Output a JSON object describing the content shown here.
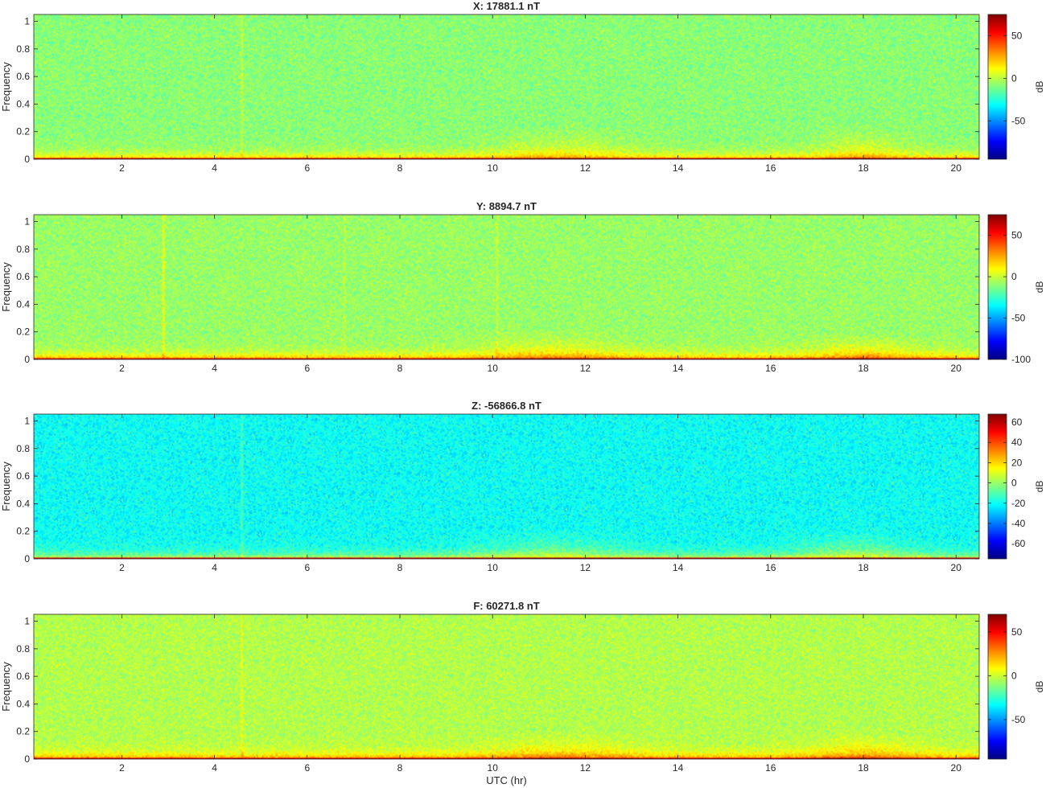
{
  "figure": {
    "xlabel": "UTC (hr)",
    "colorbar_label": "dB",
    "colormap": "jet"
  },
  "chart_data": [
    {
      "type": "heatmap",
      "title": "X: 17881.1 nT",
      "ylabel": "Frequency",
      "xlabel": "",
      "xlim": [
        0.1,
        20.5
      ],
      "ylim": [
        0,
        1.05
      ],
      "xticks": [
        2,
        4,
        6,
        8,
        10,
        12,
        14,
        16,
        18,
        20
      ],
      "yticks": [
        0,
        0.2,
        0.4,
        0.6,
        0.8,
        1
      ],
      "clim": [
        -95,
        75
      ],
      "cticks": [
        -50,
        0,
        50
      ],
      "colorbar_label": "dB",
      "background_db": -8,
      "band_db": 60,
      "low_freq_db": 25,
      "noise_db": 14,
      "enhancements": [
        {
          "x": 11.5,
          "width_hr": 1.5,
          "max_freq": 0.25,
          "db": 12
        },
        {
          "x": 18.0,
          "width_hr": 1.0,
          "max_freq": 0.25,
          "db": 14
        }
      ],
      "vertical_lines": [
        {
          "x": 4.6,
          "db": 10
        }
      ]
    },
    {
      "type": "heatmap",
      "title": "Y: 8894.7 nT",
      "ylabel": "Frequency",
      "xlabel": "",
      "xlim": [
        0.1,
        20.5
      ],
      "ylim": [
        0,
        1.05
      ],
      "xticks": [
        2,
        4,
        6,
        8,
        10,
        12,
        14,
        16,
        18,
        20
      ],
      "yticks": [
        0,
        0.2,
        0.4,
        0.6,
        0.8,
        1
      ],
      "clim": [
        -100,
        75
      ],
      "cticks": [
        -100,
        -50,
        0,
        50
      ],
      "colorbar_label": "dB",
      "background_db": -8,
      "band_db": 60,
      "low_freq_db": 28,
      "noise_db": 14,
      "enhancements": [
        {
          "x": 11.3,
          "width_hr": 1.6,
          "max_freq": 0.22,
          "db": 14
        },
        {
          "x": 18.0,
          "width_hr": 1.2,
          "max_freq": 0.2,
          "db": 16
        }
      ],
      "vertical_lines": [
        {
          "x": 2.9,
          "db": 16
        },
        {
          "x": 6.8,
          "db": 6
        },
        {
          "x": 10.1,
          "db": 8
        }
      ]
    },
    {
      "type": "heatmap",
      "title": "Z: -56866.8 nT",
      "ylabel": "Frequency",
      "xlabel": "",
      "xlim": [
        0.1,
        20.5
      ],
      "ylim": [
        0,
        1.05
      ],
      "xticks": [
        2,
        4,
        6,
        8,
        10,
        12,
        14,
        16,
        18,
        20
      ],
      "yticks": [
        0,
        0.2,
        0.4,
        0.6,
        0.8,
        1
      ],
      "clim": [
        -75,
        68
      ],
      "cticks": [
        -60,
        -40,
        -20,
        0,
        20,
        40,
        60
      ],
      "colorbar_label": "dB",
      "background_db": -20,
      "band_db": 55,
      "low_freq_db": 22,
      "noise_db": 13,
      "enhancements": [
        {
          "x": 11.3,
          "width_hr": 1.6,
          "max_freq": 0.22,
          "db": 12
        },
        {
          "x": 17.8,
          "width_hr": 1.2,
          "max_freq": 0.22,
          "db": 14
        }
      ],
      "vertical_lines": [
        {
          "x": 4.6,
          "db": 10
        }
      ]
    },
    {
      "type": "heatmap",
      "title": "F: 60271.8 nT",
      "ylabel": "Frequency",
      "xlabel": "UTC (hr)",
      "xlim": [
        0.1,
        20.5
      ],
      "ylim": [
        0,
        1.05
      ],
      "xticks": [
        2,
        4,
        6,
        8,
        10,
        12,
        14,
        16,
        18,
        20
      ],
      "yticks": [
        0,
        0.2,
        0.4,
        0.6,
        0.8,
        1
      ],
      "clim": [
        -95,
        70
      ],
      "cticks": [
        -50,
        0,
        50
      ],
      "colorbar_label": "dB",
      "background_db": -4,
      "band_db": 55,
      "low_freq_db": 25,
      "noise_db": 13,
      "enhancements": [
        {
          "x": 11.5,
          "width_hr": 1.6,
          "max_freq": 0.2,
          "db": 12
        },
        {
          "x": 18.0,
          "width_hr": 1.2,
          "max_freq": 0.2,
          "db": 14
        }
      ],
      "vertical_lines": [
        {
          "x": 4.6,
          "db": 10
        }
      ]
    }
  ]
}
